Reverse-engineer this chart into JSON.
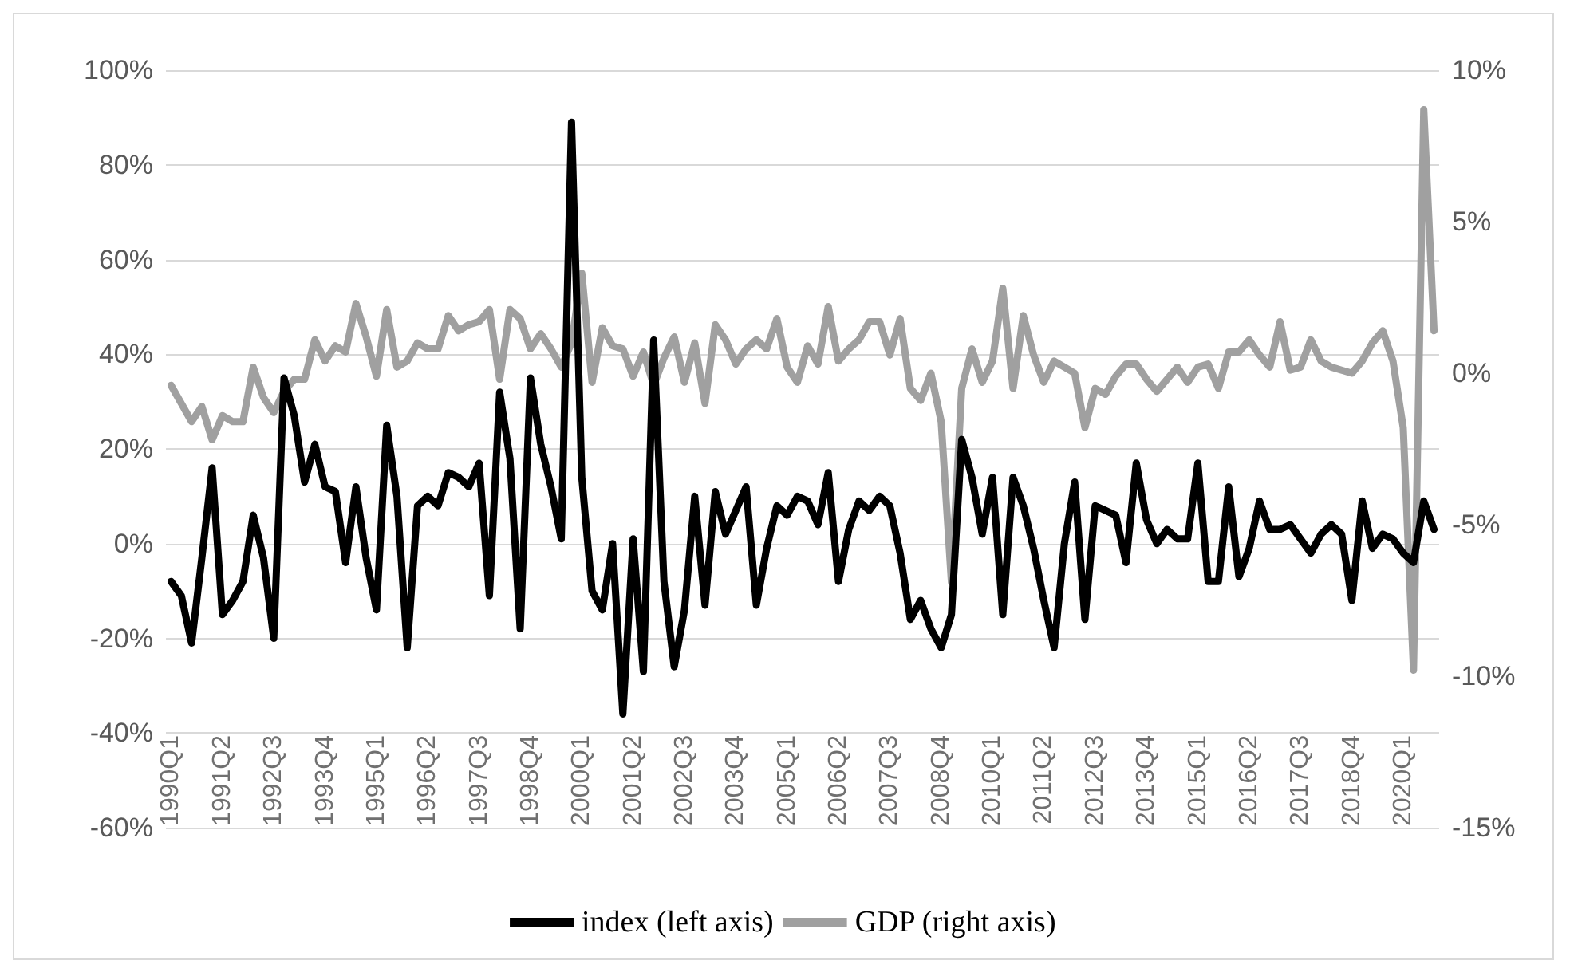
{
  "chart_data": {
    "type": "line",
    "categories": [
      "1990Q1",
      null,
      null,
      null,
      null,
      "1991Q2",
      null,
      null,
      null,
      null,
      "1992Q3",
      null,
      null,
      null,
      null,
      "1993Q4",
      null,
      null,
      null,
      null,
      "1995Q1",
      null,
      null,
      null,
      null,
      "1996Q2",
      null,
      null,
      null,
      null,
      "1997Q3",
      null,
      null,
      null,
      null,
      "1998Q4",
      null,
      null,
      null,
      null,
      "2000Q1",
      null,
      null,
      null,
      null,
      "2001Q2",
      null,
      null,
      null,
      null,
      "2002Q3",
      null,
      null,
      null,
      null,
      "2003Q4",
      null,
      null,
      null,
      null,
      "2005Q1",
      null,
      null,
      null,
      null,
      "2006Q2",
      null,
      null,
      null,
      null,
      "2007Q3",
      null,
      null,
      null,
      null,
      "2008Q4",
      null,
      null,
      null,
      null,
      "2010Q1",
      null,
      null,
      null,
      null,
      "2011Q2",
      null,
      null,
      null,
      null,
      "2012Q3",
      null,
      null,
      null,
      null,
      "2013Q4",
      null,
      null,
      null,
      null,
      "2015Q1",
      null,
      null,
      null,
      null,
      "2016Q2",
      null,
      null,
      null,
      null,
      "2017Q3",
      null,
      null,
      null,
      null,
      "2018Q4",
      null,
      null,
      null,
      null,
      "2020Q1",
      null,
      null,
      null
    ],
    "series": [
      {
        "name": "index (left axis)",
        "color": "#000000",
        "values": [
          -8,
          -11,
          -21,
          -3,
          16,
          -15,
          -12,
          -8,
          6,
          -3,
          -20,
          35,
          27,
          13,
          21,
          12,
          11,
          -4,
          12,
          -3,
          -14,
          25,
          10,
          -22,
          8,
          10,
          8,
          15,
          14,
          12,
          17,
          -11,
          32,
          18,
          -18,
          35,
          21,
          12,
          1,
          89,
          14,
          -10,
          -14,
          0,
          -36,
          1,
          -27,
          43,
          -8,
          -26,
          -14,
          10,
          -13,
          11,
          2,
          7,
          12,
          -13,
          -1,
          8,
          6,
          10,
          9,
          4,
          15,
          -8,
          3,
          9,
          7,
          10,
          8,
          -2,
          -16,
          -12,
          -18,
          -22,
          -15,
          22,
          14,
          2,
          14,
          -15,
          14,
          8,
          -1,
          -12,
          -22,
          0,
          13,
          -16,
          8,
          7,
          6,
          -4,
          17,
          5,
          0,
          3,
          1,
          1,
          17,
          -8,
          -8,
          12,
          -7,
          -1,
          9,
          3,
          3,
          4,
          1,
          -2,
          2,
          4,
          2,
          -12,
          9,
          -1,
          2,
          1,
          -2,
          -4,
          9,
          3
        ]
      },
      {
        "name": "GDP (right axis)",
        "color": "#a0a0a0",
        "axis": "y2",
        "values": [
          -0.4,
          -1,
          -1.6,
          -1.1,
          -2.2,
          -1.4,
          -1.6,
          -1.6,
          0.2,
          -0.8,
          -1.3,
          -0.6,
          -0.2,
          -0.2,
          1.1,
          0.4,
          0.9,
          0.7,
          2.3,
          1.2,
          -0.1,
          2.1,
          0.2,
          0.4,
          1,
          0.8,
          0.8,
          1.9,
          1.4,
          1.6,
          1.7,
          2.1,
          -0.2,
          2.1,
          1.8,
          0.8,
          1.3,
          0.8,
          0.2,
          1,
          3.3,
          -0.3,
          1.5,
          0.9,
          0.8,
          -0.1,
          0.7,
          -0.4,
          0.5,
          1.2,
          -0.3,
          1,
          -1,
          1.6,
          1.1,
          0.3,
          0.8,
          1.1,
          0.8,
          1.8,
          0.2,
          -0.3,
          0.9,
          0.3,
          2.2,
          0.4,
          0.8,
          1.1,
          1.7,
          1.7,
          0.6,
          1.8,
          -0.5,
          -0.9,
          0,
          -1.6,
          -6.9,
          -0.5,
          0.8,
          -0.3,
          0.4,
          2.8,
          -0.5,
          1.9,
          0.6,
          -0.3,
          0.4,
          0.2,
          0,
          -1.8,
          -0.5,
          -0.7,
          -0.1,
          0.3,
          0.3,
          -0.2,
          -0.6,
          -0.2,
          0.2,
          -0.3,
          0.2,
          0.3,
          -0.5,
          0.7,
          0.7,
          1.1,
          0.6,
          0.2,
          1.7,
          0.1,
          0.2,
          1.1,
          0.4,
          0.2,
          0.1,
          0,
          0.4,
          1,
          1.4,
          0.4,
          -1.8,
          -9.8,
          8.7,
          1.4
        ]
      }
    ],
    "ylim": [
      -60,
      100
    ],
    "yticks": [
      {
        "value": -60,
        "label": "-60%"
      },
      {
        "value": -40,
        "label": "-40%"
      },
      {
        "value": -20,
        "label": "-20%"
      },
      {
        "value": 0,
        "label": "0%"
      },
      {
        "value": 20,
        "label": "20%"
      },
      {
        "value": 40,
        "label": "40%"
      },
      {
        "value": 60,
        "label": "60%"
      },
      {
        "value": 80,
        "label": "80%"
      },
      {
        "value": 100,
        "label": "100%"
      }
    ],
    "y2lim": [
      -15,
      10
    ],
    "y2ticks": [
      {
        "value": -15,
        "label": "-15%"
      },
      {
        "value": -10,
        "label": "-10%"
      },
      {
        "value": -5,
        "label": "-5%"
      },
      {
        "value": 0,
        "label": "0%"
      },
      {
        "value": 5,
        "label": "5%"
      },
      {
        "value": 10,
        "label": "10%"
      }
    ],
    "grid": "y",
    "legend": "bottom",
    "marker": "none"
  }
}
